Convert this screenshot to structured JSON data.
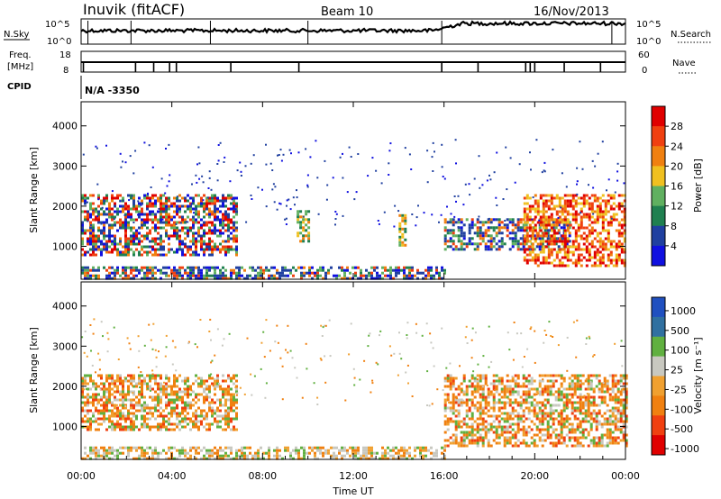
{
  "header": {
    "station": "Inuvik (fitACF)",
    "beam": "Beam 10",
    "date": "16/Nov/2013"
  },
  "top_panels": {
    "nsky_label": "N.Sky",
    "nsky_ticks": [
      "10^5",
      "10^0"
    ],
    "nsearch_label": "N.Search",
    "nsearch_ticks": [
      "10^5",
      "10^0"
    ],
    "freq_label": "Freq.",
    "freq_unit": "[MHz]",
    "freq_ticks": [
      "18",
      "8"
    ],
    "nave_label": "Nave",
    "nave_ticks": [
      "60",
      "0"
    ],
    "cpid_label": "CPID",
    "cpid_value": "N/A -3350"
  },
  "colors": {
    "power_scale": [
      "#1010e0",
      "#2040a0",
      "#208050",
      "#60b060",
      "#f0c020",
      "#f08010",
      "#f04010",
      "#e00000"
    ],
    "velocity_scale": [
      "#e00000",
      "#f04010",
      "#f08010",
      "#f0a030",
      "#c8c8c0",
      "#60b040",
      "#3070a0",
      "#2050c0"
    ]
  },
  "chart_data": [
    {
      "type": "heatmap",
      "name": "power-panel",
      "ylabel": "Slant Range [km]",
      "xlabel": "",
      "ylim": [
        180,
        4600
      ],
      "yticks": [
        "4000",
        "3000",
        "2000",
        "1000"
      ],
      "xlim": [
        0,
        24
      ],
      "colorbar": {
        "label": "Power [dB]",
        "ticks": [
          "28",
          "24",
          "20",
          "16",
          "12",
          "8",
          "4"
        ]
      },
      "echo_regions": [
        {
          "t_start": 0.0,
          "t_end": 6.8,
          "range_low": 800,
          "range_high": 2300,
          "level": "mixed-high"
        },
        {
          "t_start": 0.0,
          "t_end": 16.0,
          "range_low": 200,
          "range_high": 500,
          "level": "mixed"
        },
        {
          "t_start": 9.5,
          "t_end": 10.0,
          "range_low": 1100,
          "range_high": 1900,
          "level": "medium"
        },
        {
          "t_start": 14.0,
          "t_end": 14.3,
          "range_low": 1000,
          "range_high": 1800,
          "level": "medium"
        },
        {
          "t_start": 16.0,
          "t_end": 21.5,
          "range_low": 900,
          "range_high": 1700,
          "level": "mixed"
        },
        {
          "t_start": 19.5,
          "t_end": 24.0,
          "range_low": 500,
          "range_high": 2300,
          "level": "high"
        }
      ]
    },
    {
      "type": "heatmap",
      "name": "velocity-panel",
      "ylabel": "Slant Range [km]",
      "xlabel": "Time UT",
      "ylim": [
        180,
        4600
      ],
      "yticks": [
        "4000",
        "3000",
        "2000",
        "1000"
      ],
      "xlim": [
        0,
        24
      ],
      "xticks": [
        "00:00",
        "04:00",
        "08:00",
        "12:00",
        "16:00",
        "20:00",
        "00:00"
      ],
      "colorbar": {
        "label": "Velocity [m s⁻¹]",
        "ticks": [
          "1000",
          "500",
          "100",
          "25",
          "-25",
          "-100",
          "-500",
          "-1000"
        ]
      },
      "echo_regions": [
        {
          "t_start": 0.0,
          "t_end": 6.8,
          "range_low": 900,
          "range_high": 2300,
          "level": "negative"
        },
        {
          "t_start": 0.0,
          "t_end": 16.0,
          "range_low": 200,
          "range_high": 500,
          "level": "near-zero"
        },
        {
          "t_start": 16.0,
          "t_end": 24.0,
          "range_low": 500,
          "range_high": 2300,
          "level": "negative"
        }
      ]
    }
  ]
}
